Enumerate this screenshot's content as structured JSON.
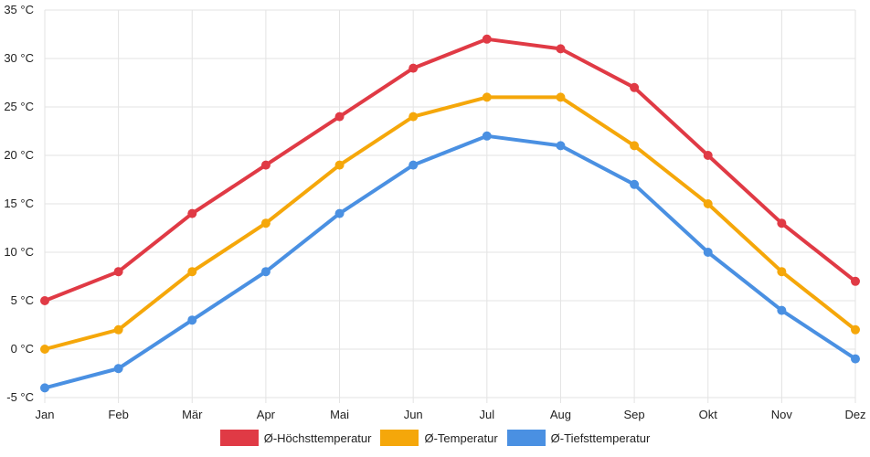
{
  "chart_data": {
    "type": "line",
    "title": "",
    "xlabel": "",
    "ylabel": "",
    "categories": [
      "Jan",
      "Feb",
      "Mär",
      "Apr",
      "Mai",
      "Jun",
      "Jul",
      "Aug",
      "Sep",
      "Okt",
      "Nov",
      "Dez"
    ],
    "y_unit": "°C",
    "y_ticks": [
      -5,
      0,
      5,
      10,
      15,
      20,
      25,
      30,
      35
    ],
    "y_tick_labels": [
      "-5 °C",
      "0 °C",
      "5 °C",
      "10 °C",
      "15 °C",
      "20 °C",
      "25 °C",
      "30 °C",
      "35 °C"
    ],
    "ylim": [
      -5,
      35
    ],
    "grid": true,
    "legend_position": "bottom",
    "series": [
      {
        "name": "Ø-Höchsttemperatur",
        "color": "#e03a45",
        "values": [
          5,
          8,
          14,
          19,
          24,
          29,
          32,
          31,
          27,
          20,
          13,
          7
        ]
      },
      {
        "name": "Ø-Temperatur",
        "color": "#f5a70a",
        "values": [
          0,
          2,
          8,
          13,
          19,
          24,
          26,
          26,
          21,
          15,
          8,
          2
        ]
      },
      {
        "name": "Ø-Tiefsttemperatur",
        "color": "#4a90e2",
        "values": [
          -4,
          -2,
          3,
          8,
          14,
          19,
          22,
          21,
          17,
          10,
          4,
          -1
        ]
      }
    ]
  }
}
